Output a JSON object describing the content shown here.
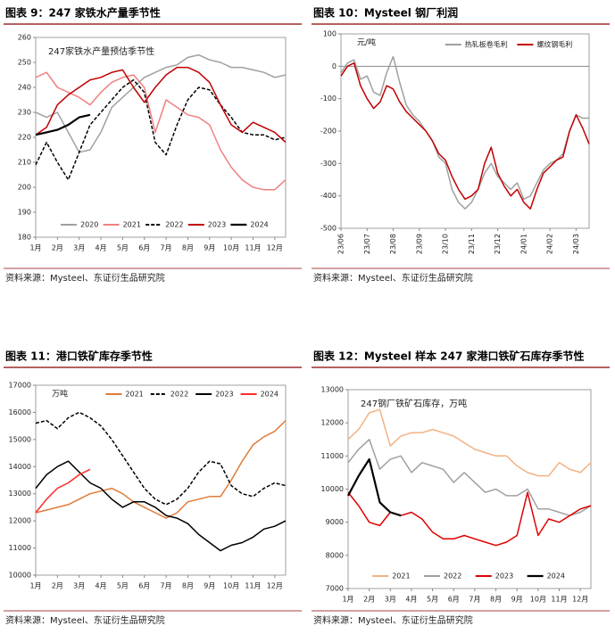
{
  "chart_data": [
    {
      "type": "line",
      "title": "图表 9：247 家铁水产量季节性",
      "subtitle": "247家铁水产量预估季节性",
      "source": "资料来源：Mysteel、东证衍生品研究院",
      "x": [
        0,
        0.5,
        1,
        1.5,
        2,
        2.5,
        3,
        3.5,
        4,
        4.5,
        5,
        5.5,
        6,
        6.5,
        7,
        7.5,
        8,
        8.5,
        9,
        9.5,
        10,
        10.5,
        11,
        11.5
      ],
      "xlim": [
        0,
        11.5
      ],
      "xticks": [
        {
          "value": 0,
          "label": "1月"
        },
        {
          "value": 1,
          "label": "2月"
        },
        {
          "value": 2,
          "label": "3月"
        },
        {
          "value": 3,
          "label": "4月"
        },
        {
          "value": 4,
          "label": "5月"
        },
        {
          "value": 5,
          "label": "6月"
        },
        {
          "value": 6,
          "label": "7月"
        },
        {
          "value": 7,
          "label": "8月"
        },
        {
          "value": 8,
          "label": "9月"
        },
        {
          "value": 9,
          "label": "10月"
        },
        {
          "value": 10,
          "label": "11月"
        },
        {
          "value": 11,
          "label": "12月"
        }
      ],
      "ylim": [
        180,
        260
      ],
      "yticks": [
        180,
        190,
        200,
        210,
        220,
        230,
        240,
        250,
        260
      ],
      "legend": "bottom",
      "series": [
        {
          "name": "2020",
          "color": "#a0a0a0",
          "values": [
            230,
            228,
            230,
            222,
            214,
            215,
            222,
            232,
            236,
            240,
            244,
            246,
            248,
            249,
            252,
            253,
            251,
            250,
            248,
            248,
            247,
            246,
            244,
            245
          ]
        },
        {
          "name": "2021",
          "color": "#f08080",
          "values": [
            244,
            246,
            240,
            238,
            236,
            233,
            238,
            242,
            244,
            245,
            240,
            222,
            235,
            232,
            229,
            228,
            225,
            215,
            208,
            203,
            200,
            199,
            199,
            203
          ]
        },
        {
          "name": "2022",
          "color": "#000000",
          "dash": true,
          "values": [
            209,
            218,
            210,
            203,
            214,
            225,
            230,
            235,
            240,
            243,
            238,
            218,
            213,
            225,
            235,
            240,
            239,
            233,
            228,
            222,
            221,
            221,
            219,
            220
          ]
        },
        {
          "name": "2023",
          "color": "#c00000",
          "values": [
            221,
            224,
            233,
            237,
            240,
            243,
            244,
            246,
            247,
            240,
            234,
            240,
            245,
            248,
            248,
            246,
            242,
            233,
            225,
            222,
            226,
            224,
            222,
            218
          ]
        },
        {
          "name": "2024",
          "color": "#000000",
          "thick": true,
          "values": [
            221,
            222,
            223,
            225,
            228,
            229,
            null,
            null,
            null,
            null,
            null,
            null,
            null,
            null,
            null,
            null,
            null,
            null,
            null,
            null,
            null,
            null,
            null,
            null
          ]
        }
      ]
    },
    {
      "type": "line",
      "title": "图表 10：Mysteel 钢厂利润",
      "ylabel": "元/吨",
      "source": "资料来源：Mysteel、东证衍生品研究院",
      "x": [
        0,
        0.25,
        0.5,
        0.75,
        1,
        1.25,
        1.5,
        1.75,
        2,
        2.25,
        2.5,
        2.75,
        3,
        3.25,
        3.5,
        3.75,
        4,
        4.25,
        4.5,
        4.75,
        5,
        5.25,
        5.5,
        5.75,
        6,
        6.25,
        6.5,
        6.75,
        7,
        7.25,
        7.5,
        7.75,
        8,
        8.25,
        8.5,
        8.75,
        9,
        9.25,
        9.5
      ],
      "xlim": [
        0,
        9.5
      ],
      "rotate_xticks": true,
      "xticks": [
        {
          "value": 0,
          "label": "23/06"
        },
        {
          "value": 1,
          "label": "23/07"
        },
        {
          "value": 2,
          "label": "23/08"
        },
        {
          "value": 3,
          "label": "23/09"
        },
        {
          "value": 4,
          "label": "23/10"
        },
        {
          "value": 5,
          "label": "23/11"
        },
        {
          "value": 6,
          "label": "23/12"
        },
        {
          "value": 7,
          "label": "24/01"
        },
        {
          "value": 8,
          "label": "24/02"
        },
        {
          "value": 9,
          "label": "24/03"
        }
      ],
      "ylim": [
        -500,
        100
      ],
      "yticks": [
        -500,
        -400,
        -300,
        -200,
        -100,
        0,
        100
      ],
      "legend": "upper right",
      "series": [
        {
          "name": "热轧板卷毛利",
          "color": "#a0a0a0",
          "values": [
            -20,
            10,
            20,
            -40,
            -30,
            -80,
            -90,
            -20,
            30,
            -50,
            -120,
            -150,
            -170,
            -200,
            -230,
            -280,
            -300,
            -380,
            -420,
            -440,
            -420,
            -380,
            -330,
            -300,
            -340,
            -360,
            -380,
            -360,
            -410,
            -400,
            -360,
            -320,
            -300,
            -290,
            -270,
            -200,
            -150,
            -160,
            -160
          ]
        },
        {
          "name": "螺纹钢毛利",
          "color": "#c00000",
          "values": [
            -30,
            0,
            10,
            -60,
            -100,
            -130,
            -110,
            -60,
            -70,
            -110,
            -140,
            -160,
            -180,
            -200,
            -230,
            -270,
            -290,
            -340,
            -380,
            -410,
            -400,
            -380,
            -300,
            -250,
            -330,
            -370,
            -400,
            -380,
            -420,
            -440,
            -380,
            -330,
            -310,
            -290,
            -280,
            -200,
            -150,
            -190,
            -240
          ]
        }
      ]
    },
    {
      "type": "line",
      "title": "图表 11：港口铁矿库存季节性",
      "ylabel": "万吨",
      "source": "资料来源：Mysteel、东证衍生品研究院",
      "x": [
        0,
        0.5,
        1,
        1.5,
        2,
        2.5,
        3,
        3.5,
        4,
        4.5,
        5,
        5.5,
        6,
        6.5,
        7,
        7.5,
        8,
        8.5,
        9,
        9.5,
        10,
        10.5,
        11,
        11.5
      ],
      "xlim": [
        0,
        11.5
      ],
      "xticks": [
        {
          "value": 0,
          "label": "1月"
        },
        {
          "value": 1,
          "label": "2月"
        },
        {
          "value": 2,
          "label": "3月"
        },
        {
          "value": 3,
          "label": "4月"
        },
        {
          "value": 4,
          "label": "5月"
        },
        {
          "value": 5,
          "label": "6月"
        },
        {
          "value": 6,
          "label": "7月"
        },
        {
          "value": 7,
          "label": "8月"
        },
        {
          "value": 8,
          "label": "9月"
        },
        {
          "value": 9,
          "label": "10月"
        },
        {
          "value": 10,
          "label": "11月"
        },
        {
          "value": 11,
          "label": "12月"
        }
      ],
      "ylim": [
        10000,
        17000
      ],
      "yticks": [
        10000,
        11000,
        12000,
        13000,
        14000,
        15000,
        16000,
        17000
      ],
      "legend": "top",
      "series": [
        {
          "name": "2021",
          "color": "#e07b39",
          "values": [
            12300,
            12400,
            12500,
            12600,
            12800,
            13000,
            13100,
            13200,
            13000,
            12700,
            12500,
            12300,
            12100,
            12300,
            12700,
            12800,
            12900,
            12900,
            13500,
            14200,
            14800,
            15100,
            15300,
            15700
          ]
        },
        {
          "name": "2022",
          "color": "#000000",
          "dash": true,
          "values": [
            15600,
            15700,
            15400,
            15800,
            16000,
            15800,
            15500,
            15000,
            14400,
            13800,
            13200,
            12800,
            12600,
            12800,
            13200,
            13800,
            14200,
            14100,
            13300,
            13000,
            12900,
            13200,
            13400,
            13300
          ]
        },
        {
          "name": "2023",
          "color": "#000000",
          "values": [
            13200,
            13700,
            14000,
            14200,
            13800,
            13400,
            13200,
            12800,
            12500,
            12700,
            12700,
            12500,
            12200,
            12100,
            11900,
            11500,
            11200,
            10900,
            11100,
            11200,
            11400,
            11700,
            11800,
            12000
          ]
        },
        {
          "name": "2024",
          "color": "#ff2a2a",
          "values": [
            12300,
            12800,
            13200,
            13400,
            13700,
            13900,
            null,
            null,
            null,
            null,
            null,
            null,
            null,
            null,
            null,
            null,
            null,
            null,
            null,
            null,
            null,
            null,
            null,
            null
          ]
        }
      ]
    },
    {
      "type": "line",
      "title": "图表 12：Mysteel 样本 247 家港口铁矿石库存季节性",
      "subtitle": "247钢厂铁矿石库存，万吨",
      "source": "资料来源：Mysteel、东证衍生品研究院",
      "x": [
        0,
        0.5,
        1,
        1.5,
        2,
        2.5,
        3,
        3.5,
        4,
        4.5,
        5,
        5.5,
        6,
        6.5,
        7,
        7.5,
        8,
        8.5,
        9,
        9.5,
        10,
        10.5,
        11,
        11.5
      ],
      "xlim": [
        0,
        11.5
      ],
      "xticks": [
        {
          "value": 0,
          "label": "1月"
        },
        {
          "value": 1,
          "label": "2月"
        },
        {
          "value": 2,
          "label": "3月"
        },
        {
          "value": 3,
          "label": "4月"
        },
        {
          "value": 4,
          "label": "5月"
        },
        {
          "value": 5,
          "label": "6月"
        },
        {
          "value": 6,
          "label": "7月"
        },
        {
          "value": 7,
          "label": "8月"
        },
        {
          "value": 8,
          "label": "9月"
        },
        {
          "value": 9,
          "label": "10月"
        },
        {
          "value": 10,
          "label": "11月"
        },
        {
          "value": 11,
          "label": "12月"
        }
      ],
      "ylim": [
        7000,
        13000
      ],
      "yticks": [
        7000,
        8000,
        9000,
        10000,
        11000,
        12000,
        13000
      ],
      "legend": "bottom",
      "series": [
        {
          "name": "2021",
          "color": "#f4b183",
          "values": [
            11500,
            11800,
            12300,
            12400,
            11300,
            11600,
            11700,
            11700,
            11800,
            11700,
            11600,
            11400,
            11200,
            11100,
            11000,
            11000,
            10700,
            10500,
            10400,
            10400,
            10800,
            10600,
            10500,
            10800
          ]
        },
        {
          "name": "2022",
          "color": "#a0a0a0",
          "values": [
            10800,
            11200,
            11500,
            10600,
            10900,
            11000,
            10500,
            10800,
            10700,
            10600,
            10200,
            10500,
            10200,
            9900,
            10000,
            9800,
            9800,
            10000,
            9400,
            9400,
            9300,
            9200,
            9300,
            9500
          ]
        },
        {
          "name": "2023",
          "color": "#e00000",
          "values": [
            9900,
            9500,
            9000,
            8900,
            9300,
            9200,
            9300,
            9100,
            8700,
            8500,
            8500,
            8600,
            8500,
            8400,
            8300,
            8400,
            8600,
            9900,
            8600,
            9100,
            9000,
            9200,
            9400,
            9500
          ]
        },
        {
          "name": "2024",
          "color": "#000000",
          "thick": true,
          "values": [
            9800,
            10400,
            10900,
            9600,
            9300,
            9200,
            null,
            null,
            null,
            null,
            null,
            null,
            null,
            null,
            null,
            null,
            null,
            null,
            null,
            null,
            null,
            null,
            null,
            null
          ]
        }
      ]
    }
  ]
}
